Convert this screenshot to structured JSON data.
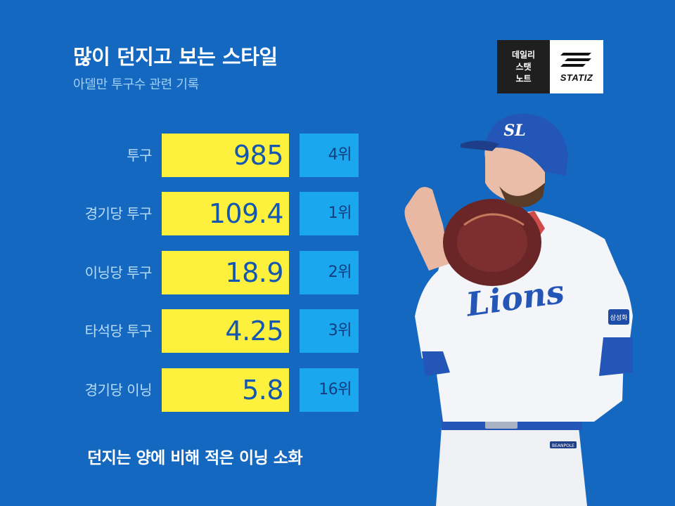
{
  "header": {
    "title": "많이 던지고 보는 스타일",
    "subtitle": "아델만 투구수 관련 기록"
  },
  "logo": {
    "line1": "데일리",
    "line2": "스탯",
    "line3": "노트",
    "brand": "STATIZ"
  },
  "stats": [
    {
      "label": "투구",
      "value": "985",
      "rank": "4위"
    },
    {
      "label": "경기당 투구",
      "value": "109.4",
      "rank": "1위"
    },
    {
      "label": "이닝당 투구",
      "value": "18.9",
      "rank": "2위"
    },
    {
      "label": "타석당 투구",
      "value": "4.25",
      "rank": "3위"
    },
    {
      "label": "경기당 이닝",
      "value": "5.8",
      "rank": "16위"
    }
  ],
  "footer": {
    "caption": "던지는 양에 비해 적은 이닝 소화"
  },
  "player_photo": {
    "cap_logo": "SL",
    "jersey_text": "Lions",
    "sleeve_patch": "삼성화",
    "belt_tag": "BEANPOLE"
  },
  "colors": {
    "background": "#1568c0",
    "value_box": "#fef13d",
    "rank_box": "#1ba7ee",
    "value_text": "#1457b0"
  }
}
